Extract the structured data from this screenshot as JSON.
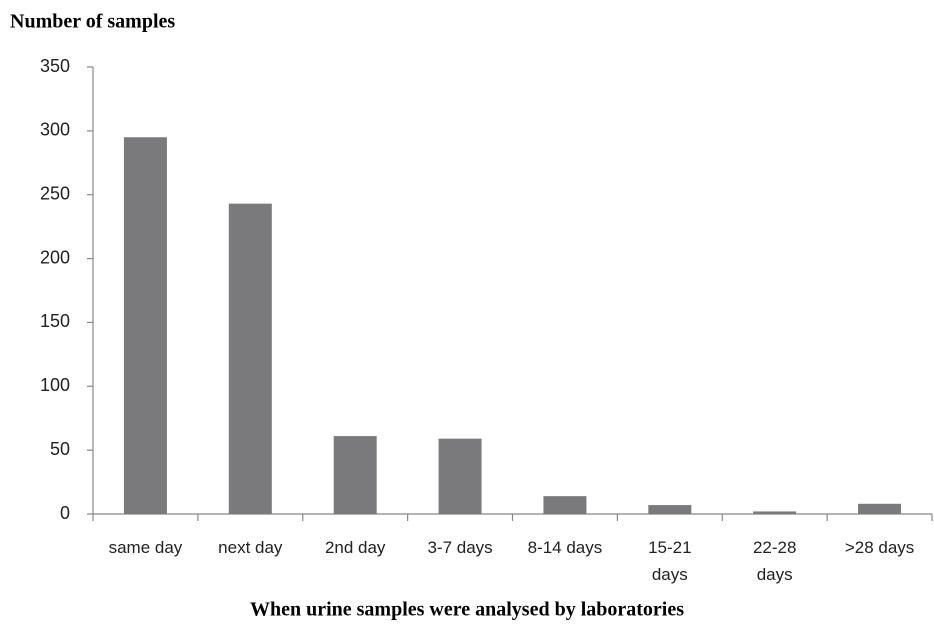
{
  "chart_data": {
    "type": "bar",
    "title": "Number of samples",
    "x_label": "When urine samples were analysed by laboratories",
    "categories": [
      "same day",
      "next day",
      "2nd day",
      "3-7 days",
      "8-14 days",
      "15-21 days",
      "22-28 days",
      ">28 days"
    ],
    "values": [
      295,
      243,
      61,
      59,
      14,
      7,
      2,
      8
    ],
    "color": "#7a7a7d",
    "ylim": [
      0,
      350
    ],
    "yticks": [
      0,
      50,
      100,
      150,
      200,
      250,
      300,
      350
    ],
    "grid": false
  }
}
